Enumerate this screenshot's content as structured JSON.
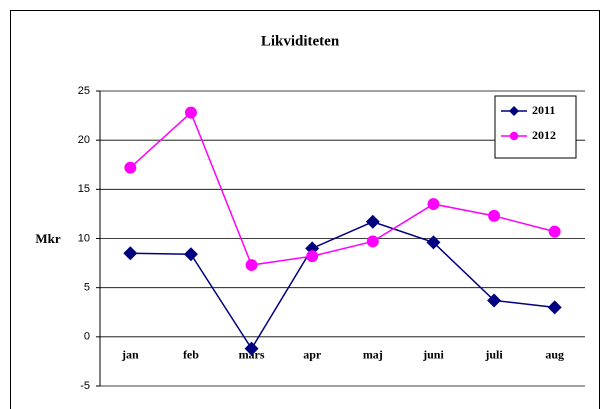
{
  "chart_data": {
    "type": "line",
    "title": "Likviditeten",
    "y_label": "Mkr",
    "categories": [
      "jan",
      "feb",
      "mars",
      "apr",
      "maj",
      "juni",
      "juli",
      "aug"
    ],
    "series": [
      {
        "name": "2011",
        "color": "#000080",
        "marker": "diamond",
        "values": [
          8.5,
          8.4,
          -1.2,
          9.0,
          11.7,
          9.6,
          3.7,
          3.0
        ]
      },
      {
        "name": "2012",
        "color": "#ff00ff",
        "marker": "circle",
        "values": [
          17.2,
          22.8,
          7.3,
          8.2,
          9.7,
          13.5,
          12.3,
          10.7
        ]
      }
    ],
    "ylim": [
      -5,
      25
    ],
    "yticks": [
      -5,
      0,
      5,
      10,
      15,
      20,
      25
    ],
    "grid": true,
    "legend": "upper right"
  }
}
